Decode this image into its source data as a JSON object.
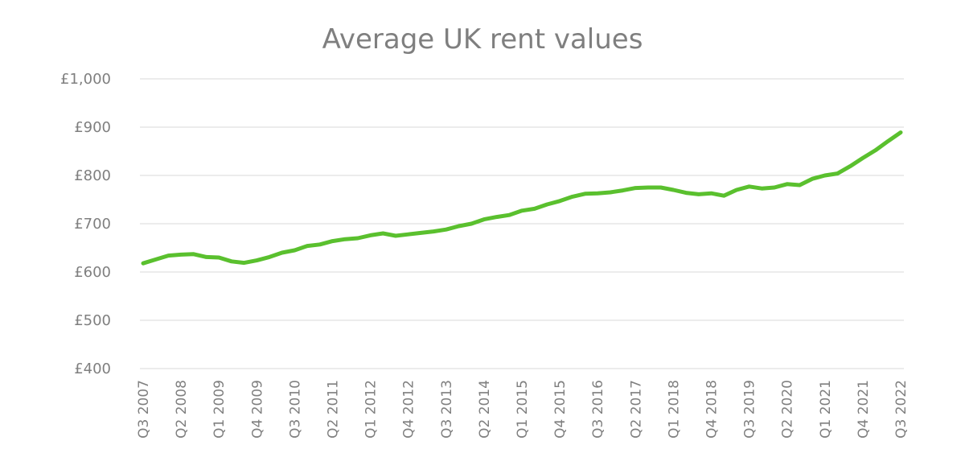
{
  "chart_data": {
    "type": "line",
    "title": "Average UK rent values",
    "xlabel": "",
    "ylabel": "",
    "ylim": [
      400,
      1000
    ],
    "y_ticks": [
      400,
      500,
      600,
      700,
      800,
      900,
      1000
    ],
    "y_tick_labels": [
      "£400",
      "£500",
      "£600",
      "£700",
      "£800",
      "£900",
      "£1,000"
    ],
    "x_tick_labels": [
      "Q3 2007",
      "Q2 2008",
      "Q1 2009",
      "Q4 2009",
      "Q3 2010",
      "Q2 2011",
      "Q1 2012",
      "Q4 2012",
      "Q3 2013",
      "Q2 2014",
      "Q1 2015",
      "Q4 2015",
      "Q3 2016",
      "Q2 2017",
      "Q1 2018",
      "Q4 2018",
      "Q3 2019",
      "Q2 2020",
      "Q1 2021",
      "Q4 2021",
      "Q3 2022"
    ],
    "grid": true,
    "legend": "none",
    "line_color": "#5ac02e",
    "categories": [
      "Q3 2007",
      "Q4 2007",
      "Q1 2008",
      "Q2 2008",
      "Q3 2008",
      "Q4 2008",
      "Q1 2009",
      "Q2 2009",
      "Q3 2009",
      "Q4 2009",
      "Q1 2010",
      "Q2 2010",
      "Q3 2010",
      "Q4 2010",
      "Q1 2011",
      "Q2 2011",
      "Q3 2011",
      "Q4 2011",
      "Q1 2012",
      "Q2 2012",
      "Q3 2012",
      "Q4 2012",
      "Q1 2013",
      "Q2 2013",
      "Q3 2013",
      "Q4 2013",
      "Q1 2014",
      "Q2 2014",
      "Q3 2014",
      "Q4 2014",
      "Q1 2015",
      "Q2 2015",
      "Q3 2015",
      "Q4 2015",
      "Q1 2016",
      "Q2 2016",
      "Q3 2016",
      "Q4 2016",
      "Q1 2017",
      "Q2 2017",
      "Q3 2017",
      "Q4 2017",
      "Q1 2018",
      "Q2 2018",
      "Q3 2018",
      "Q4 2018",
      "Q1 2019",
      "Q2 2019",
      "Q3 2019",
      "Q4 2019",
      "Q1 2020",
      "Q2 2020",
      "Q3 2020",
      "Q4 2020",
      "Q1 2021",
      "Q2 2021",
      "Q3 2021",
      "Q4 2021",
      "Q1 2022",
      "Q2 2022",
      "Q3 2022"
    ],
    "series": [
      {
        "values": [
          618,
          626,
          634,
          636,
          637,
          631,
          630,
          622,
          619,
          624,
          631,
          640,
          645,
          654,
          657,
          664,
          668,
          670,
          676,
          680,
          675,
          678,
          681,
          684,
          688,
          695,
          700,
          709,
          714,
          718,
          727,
          731,
          740,
          747,
          756,
          762,
          763,
          765,
          769,
          774,
          775,
          775,
          770,
          764,
          761,
          763,
          758,
          770,
          777,
          773,
          775,
          782,
          780,
          793,
          800,
          804,
          819,
          836,
          852,
          871,
          889
        ]
      }
    ]
  }
}
